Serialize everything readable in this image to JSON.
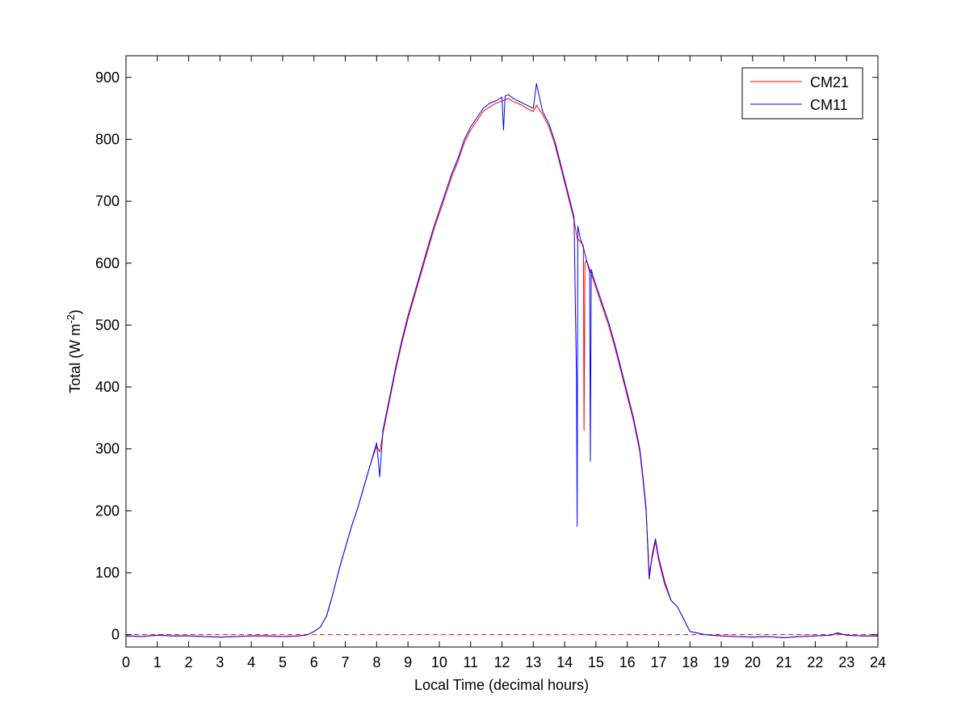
{
  "chart_data": {
    "type": "line",
    "title": "",
    "xlabel": "Local Time (decimal hours)",
    "ylabel": {
      "prefix": "Total (W m",
      "superscript": "-2",
      "suffix": ")"
    },
    "xlim": [
      0,
      24
    ],
    "ylim": [
      -20,
      935
    ],
    "xticks": [
      0,
      1,
      2,
      3,
      4,
      5,
      6,
      7,
      8,
      9,
      10,
      11,
      12,
      13,
      14,
      15,
      16,
      17,
      18,
      19,
      20,
      21,
      22,
      23,
      24
    ],
    "yticks": [
      0,
      100,
      200,
      300,
      400,
      500,
      600,
      700,
      800,
      900
    ],
    "grid": false,
    "legend_position": "top-right",
    "colors": {
      "CM21": "#ff0000",
      "CM11": "#0000ff",
      "zero_line": "#ff0000"
    },
    "reference_line": {
      "y": 0,
      "style": "dashed"
    },
    "series": [
      {
        "name": "CM21",
        "x": [
          0,
          0.5,
          1,
          1.5,
          2,
          2.5,
          3,
          3.5,
          4,
          4.5,
          5,
          5.5,
          5.8,
          6.0,
          6.2,
          6.4,
          6.6,
          6.8,
          7.0,
          7.2,
          7.4,
          7.6,
          7.8,
          8.0,
          8.1,
          8.2,
          8.4,
          8.6,
          8.8,
          9.0,
          9.2,
          9.4,
          9.6,
          9.8,
          10.0,
          10.2,
          10.4,
          10.6,
          10.8,
          11.0,
          11.2,
          11.4,
          11.6,
          11.8,
          12.0,
          12.2,
          12.4,
          12.6,
          12.8,
          13.0,
          13.1,
          13.3,
          13.5,
          13.7,
          13.9,
          14.1,
          14.3,
          14.4,
          14.5,
          14.6,
          14.62,
          14.65,
          14.7,
          14.8,
          14.9,
          15.0,
          15.2,
          15.4,
          15.6,
          15.8,
          16.0,
          16.2,
          16.4,
          16.5,
          16.6,
          16.7,
          16.8,
          16.9,
          17.0,
          17.2,
          17.4,
          17.6,
          17.8,
          18.0,
          18.5,
          19,
          19.5,
          20,
          20.5,
          21,
          21.5,
          22,
          22.5,
          22.7,
          23,
          23.5,
          24
        ],
        "y": [
          -2,
          -3,
          -1,
          -2,
          -2,
          -3,
          -4,
          -3,
          -2,
          -2,
          -3,
          -2,
          0,
          5,
          12,
          30,
          65,
          105,
          140,
          175,
          205,
          240,
          275,
          305,
          295,
          325,
          375,
          425,
          470,
          510,
          545,
          580,
          615,
          650,
          680,
          710,
          740,
          765,
          795,
          815,
          830,
          845,
          852,
          858,
          862,
          866,
          860,
          856,
          850,
          845,
          855,
          840,
          820,
          790,
          750,
          710,
          670,
          640,
          635,
          628,
          330,
          600,
          605,
          590,
          575,
          560,
          530,
          500,
          465,
          425,
          385,
          345,
          295,
          250,
          200,
          100,
          125,
          150,
          120,
          80,
          55,
          45,
          25,
          5,
          0,
          -2,
          -3,
          -4,
          -3,
          -5,
          -3,
          -2,
          -1,
          2,
          -1,
          -2,
          -2
        ]
      },
      {
        "name": "CM11",
        "x": [
          0,
          0.5,
          1,
          1.5,
          2,
          2.5,
          3,
          3.5,
          4,
          4.5,
          5,
          5.5,
          5.8,
          6.0,
          6.2,
          6.4,
          6.6,
          6.8,
          7.0,
          7.2,
          7.4,
          7.6,
          7.8,
          8.0,
          8.1,
          8.2,
          8.4,
          8.6,
          8.8,
          9.0,
          9.2,
          9.4,
          9.6,
          9.8,
          10.0,
          10.2,
          10.4,
          10.6,
          10.8,
          11.0,
          11.2,
          11.4,
          11.6,
          11.8,
          12.0,
          12.05,
          12.1,
          12.2,
          12.4,
          12.6,
          12.8,
          13.0,
          13.1,
          13.3,
          13.5,
          13.7,
          13.9,
          14.1,
          14.3,
          14.38,
          14.4,
          14.42,
          14.5,
          14.6,
          14.7,
          14.8,
          14.82,
          14.85,
          14.9,
          15.0,
          15.2,
          15.4,
          15.6,
          15.8,
          16.0,
          16.2,
          16.4,
          16.5,
          16.6,
          16.7,
          16.8,
          16.9,
          17.0,
          17.2,
          17.4,
          17.6,
          17.8,
          18.0,
          18.5,
          19,
          19.5,
          20,
          20.5,
          21,
          21.5,
          22,
          22.5,
          22.7,
          23,
          23.5,
          24
        ],
        "y": [
          -2,
          -3,
          -1,
          -2,
          -2,
          -3,
          -4,
          -3,
          -2,
          -2,
          -3,
          -2,
          0,
          5,
          12,
          30,
          65,
          105,
          140,
          175,
          205,
          240,
          275,
          310,
          255,
          330,
          380,
          430,
          475,
          515,
          550,
          585,
          620,
          655,
          685,
          715,
          745,
          770,
          800,
          820,
          835,
          850,
          858,
          862,
          868,
          815,
          870,
          872,
          865,
          860,
          855,
          850,
          890,
          845,
          825,
          795,
          755,
          715,
          675,
          415,
          175,
          660,
          640,
          625,
          605,
          585,
          280,
          590,
          580,
          565,
          535,
          505,
          470,
          430,
          390,
          350,
          300,
          255,
          205,
          90,
          130,
          155,
          125,
          85,
          55,
          45,
          25,
          5,
          0,
          -2,
          -3,
          -4,
          -3,
          -5,
          -3,
          -2,
          -1,
          3,
          -1,
          -2,
          -2
        ]
      }
    ]
  }
}
